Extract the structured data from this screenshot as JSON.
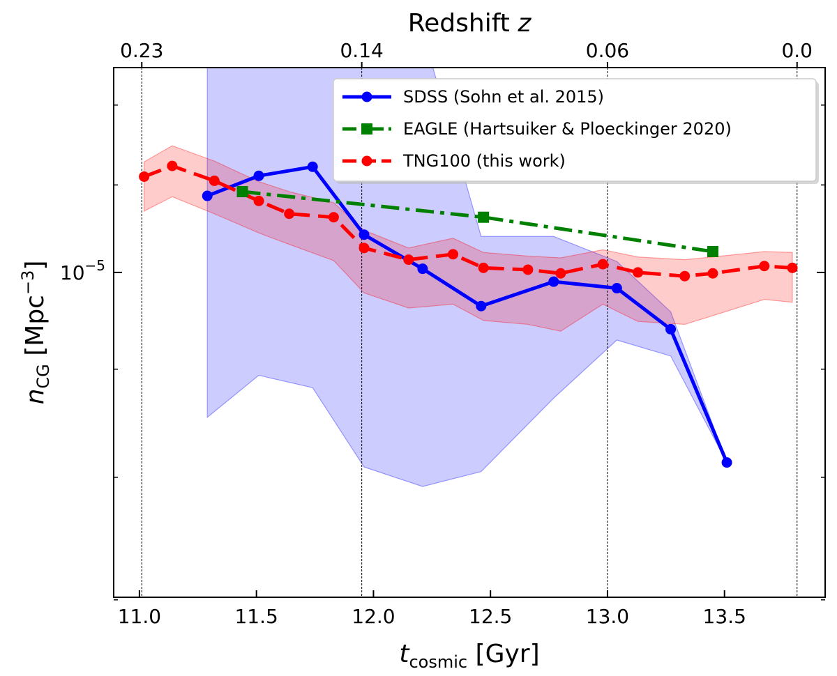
{
  "chart_data": {
    "type": "line",
    "xlabel": {
      "var": "t",
      "sub": "cosmic",
      "unit": " [Gyr]"
    },
    "ylabel": {
      "var": "n",
      "sub": "CG",
      "unit_pre": " [Mpc",
      "unit_sup": "−3",
      "unit_post": "]"
    },
    "top_axis_title": {
      "text": "Redshift ",
      "var": "z"
    },
    "xlim": [
      10.89,
      13.93
    ],
    "ylim": [
      7.02e-06,
      1.25e-05
    ],
    "y_scale": "log",
    "x_ticks": [
      {
        "value": 11.0,
        "label": "11.0"
      },
      {
        "value": 11.5,
        "label": "11.5"
      },
      {
        "value": 12.0,
        "label": "12.0"
      },
      {
        "value": 12.5,
        "label": "12.5"
      },
      {
        "value": 13.0,
        "label": "13.0"
      },
      {
        "value": 13.5,
        "label": "13.5"
      }
    ],
    "y_ticks": [
      {
        "value": 1e-05,
        "base": "10",
        "exp": "−5"
      }
    ],
    "y_minor_ticks": [
      7e-06,
      8e-06,
      9e-06,
      1.1e-05,
      1.2e-05
    ],
    "top_ticks": [
      {
        "value": 11.01,
        "label": "0.23"
      },
      {
        "value": 11.95,
        "label": "0.14"
      },
      {
        "value": 13.0,
        "label": "0.06"
      },
      {
        "value": 13.81,
        "label": "0.0"
      }
    ],
    "vlines": [
      11.01,
      11.95,
      13.0,
      13.81
    ],
    "legend_position": "upper-right",
    "series": [
      {
        "name": "SDSS (Sohn et al. 2015)",
        "color": "#0000ff",
        "style": "solid",
        "marker": "circle",
        "x": [
          11.29,
          11.51,
          11.74,
          11.96,
          12.21,
          12.46,
          12.77,
          13.04,
          13.27,
          13.51
        ],
        "y": [
          1.087e-05,
          1.111e-05,
          1.122e-05,
          1.042e-05,
          1.004e-05,
          9.64e-06,
          9.9e-06,
          9.83e-06,
          9.4e-06,
          8.13e-06
        ],
        "band_upper": [
          1.3e-05,
          1.3e-05,
          1.3e-05,
          1.3e-05,
          1.3e-05,
          1.04e-05,
          1.04e-05,
          1.012e-05,
          9.58e-06,
          8.13e-06
        ],
        "band_lower": [
          8.54e-06,
          8.94e-06,
          8.82e-06,
          8.09e-06,
          7.92e-06,
          8.05e-06,
          8.72e-06,
          9.29e-06,
          9.13e-06,
          8.13e-06
        ]
      },
      {
        "name": "EAGLE (Hartsuiker & Ploeckinger 2020)",
        "color": "#008000",
        "style": "dashdot",
        "marker": "square",
        "x": [
          11.44,
          12.47,
          13.45
        ],
        "y": [
          1.092e-05,
          1.062e-05,
          1.023e-05
        ]
      },
      {
        "name": "TNG100 (this work)",
        "color": "#ff0000",
        "style": "dashed",
        "marker": "circle",
        "x": [
          11.02,
          11.14,
          11.32,
          11.51,
          11.64,
          11.83,
          11.96,
          12.15,
          12.34,
          12.47,
          12.66,
          12.8,
          12.98,
          13.13,
          13.33,
          13.45,
          13.67,
          13.79
        ],
        "y": [
          1.11e-05,
          1.123e-05,
          1.105e-05,
          1.081e-05,
          1.066e-05,
          1.062e-05,
          1.027e-05,
          1.014e-05,
          1.02e-05,
          1.005e-05,
          1.003e-05,
          9.99e-06,
          1.009e-05,
          1e-05,
          9.96e-06,
          9.99e-06,
          1.007e-05,
          1.005e-05
        ],
        "band_upper": [
          1.128e-05,
          1.148e-05,
          1.129e-05,
          1.104e-05,
          1.092e-05,
          1.079e-05,
          1.047e-05,
          1.027e-05,
          1.038e-05,
          1.022e-05,
          1.018e-05,
          1.016e-05,
          1.025e-05,
          1.017e-05,
          1.014e-05,
          1.017e-05,
          1.023e-05,
          1.022e-05
        ],
        "band_lower": [
          1.069e-05,
          1.086e-05,
          1.066e-05,
          1.044e-05,
          1.031e-05,
          1.013e-05,
          9.78e-06,
          9.62e-06,
          9.66e-06,
          9.49e-06,
          9.45e-06,
          9.38e-06,
          9.66e-06,
          9.48e-06,
          9.45e-06,
          9.54e-06,
          9.71e-06,
          9.68e-06
        ]
      }
    ]
  }
}
